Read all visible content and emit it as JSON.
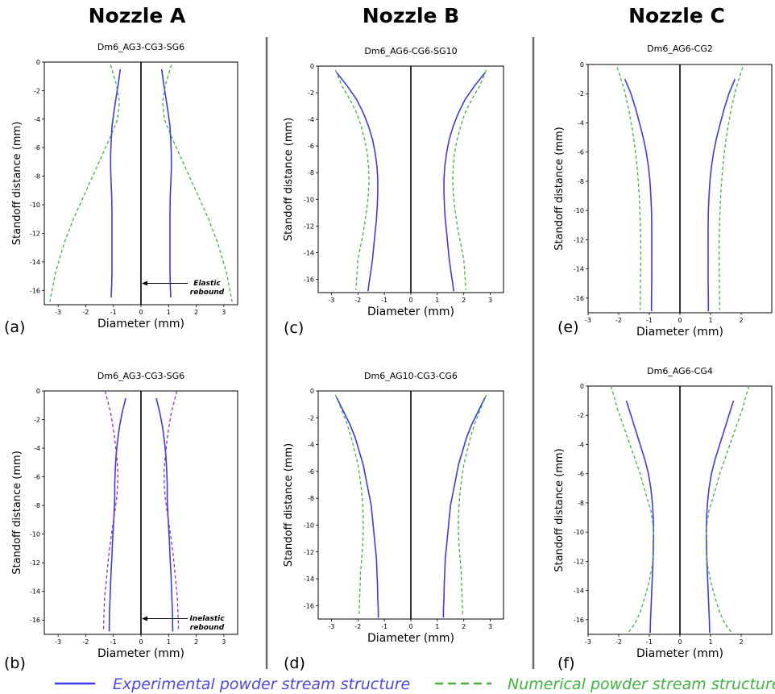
{
  "column_titles": [
    "Nozzle A",
    "Nozzle B",
    "Nozzle C"
  ],
  "legend": {
    "experimental": "Experimental powder stream structure",
    "numerical": "Numerical powder stream structure"
  },
  "colors": {
    "experimental": "#3a3af5",
    "numerical": "#3fb43f",
    "numerical_b": "#9b2fae",
    "axis": "#000000"
  },
  "chart_data": [
    {
      "type": "line",
      "panel": "(a)",
      "title": "Dm6_AG3-CG3-SG6",
      "xlabel": "Diameter (mm)",
      "ylabel": "Standoff distance (mm)",
      "xlim": [
        -3.5,
        3.5
      ],
      "ylim": [
        -17,
        0
      ],
      "xticks": [
        -3,
        -2,
        -1,
        0,
        1,
        2,
        3
      ],
      "yticks": [
        0,
        -2,
        -4,
        -6,
        -8,
        -10,
        -12,
        -14,
        -16
      ],
      "annotation": [
        "Elastic",
        "rebound"
      ],
      "annotation_xy": [
        0,
        -15.5
      ],
      "series": [
        {
          "kind": "experimental",
          "dash": false,
          "color": "#3a3af5",
          "x": [
            0.75,
            0.82,
            0.9,
            0.98,
            1.05,
            1.08,
            1.1,
            1.1,
            1.08,
            1.06,
            1.05,
            1.05,
            1.05,
            1.05,
            1.05,
            1.06,
            1.08
          ],
          "y": [
            -0.5,
            -1.5,
            -2.5,
            -3.5,
            -4.5,
            -5.5,
            -6.5,
            -7.5,
            -8.5,
            -9.5,
            -10.5,
            -11.5,
            -12.5,
            -13.5,
            -14.5,
            -15.5,
            -16.5
          ]
        },
        {
          "kind": "numerical",
          "dash": true,
          "color": "#3fb43f",
          "x": [
            1.1,
            0.9,
            0.78,
            0.85,
            1.05,
            1.4,
            1.75,
            2.1,
            2.45,
            2.8,
            3.1,
            3.3
          ],
          "y": [
            -0.2,
            -1.5,
            -2.8,
            -4.0,
            -5.0,
            -6.5,
            -8.0,
            -9.5,
            -11.0,
            -12.8,
            -14.8,
            -16.8
          ]
        }
      ]
    },
    {
      "type": "line",
      "panel": "(b)",
      "title": "Dm6_AG3-CG3-SG6",
      "xlabel": "Diameter (mm)",
      "ylabel": "Standoff distance (mm)",
      "xlim": [
        -3.5,
        3.5
      ],
      "ylim": [
        -17,
        0
      ],
      "xticks": [
        -3,
        -2,
        -1,
        0,
        1,
        2,
        3
      ],
      "yticks": [
        0,
        -2,
        -4,
        -6,
        -8,
        -10,
        -12,
        -14,
        -16
      ],
      "annotation": [
        "Inelastic",
        "rebound"
      ],
      "annotation_xy": [
        0,
        -15.9
      ],
      "series": [
        {
          "kind": "experimental",
          "dash": false,
          "color": "#3a3af5",
          "x": [
            0.55,
            0.68,
            0.78,
            0.85,
            0.9,
            0.93,
            0.95,
            0.95,
            0.97,
            1.0,
            1.03,
            1.05,
            1.08,
            1.1,
            1.12,
            1.14,
            1.15
          ],
          "y": [
            -0.5,
            -1.5,
            -2.5,
            -3.5,
            -4.5,
            -5.5,
            -6.5,
            -7.5,
            -8.5,
            -9.5,
            -10.5,
            -11.5,
            -12.5,
            -13.5,
            -14.5,
            -15.5,
            -16.8
          ]
        },
        {
          "kind": "numerical",
          "dash": true,
          "color": "#9b2fae",
          "x": [
            1.3,
            1.1,
            0.97,
            0.88,
            0.84,
            0.84,
            0.88,
            0.95,
            1.03,
            1.1,
            1.17,
            1.22,
            1.27,
            1.32,
            1.36
          ],
          "y": [
            0,
            -1.5,
            -3.0,
            -4.5,
            -5.5,
            -6.5,
            -7.5,
            -8.5,
            -9.5,
            -10.5,
            -11.5,
            -12.5,
            -13.5,
            -14.5,
            -16.8
          ]
        }
      ]
    },
    {
      "type": "line",
      "panel": "(c)",
      "title": "Dm6_AG6-CG6-SG10",
      "xlabel": "Diameter (mm)",
      "ylabel": "Standoff distance (mm)",
      "xlim": [
        -3.5,
        3.5
      ],
      "ylim": [
        -17,
        0
      ],
      "xticks": [
        -3,
        -2,
        -1,
        0,
        1,
        2,
        3
      ],
      "yticks": [
        0,
        -2,
        -4,
        -6,
        -8,
        -10,
        -12,
        -14,
        -16
      ],
      "series": [
        {
          "kind": "experimental",
          "dash": false,
          "color": "#3a3af5",
          "x": [
            2.8,
            2.4,
            2.05,
            1.8,
            1.6,
            1.45,
            1.35,
            1.28,
            1.25,
            1.25,
            1.27,
            1.3,
            1.35,
            1.4,
            1.45,
            1.52,
            1.58,
            1.62
          ],
          "y": [
            -0.5,
            -1.5,
            -2.5,
            -3.5,
            -4.5,
            -5.5,
            -6.5,
            -7.5,
            -8.5,
            -9.5,
            -10.5,
            -11.5,
            -12.5,
            -13.5,
            -14.5,
            -15.5,
            -16.3,
            -16.9
          ]
        },
        {
          "kind": "numerical",
          "dash": true,
          "color": "#3fb43f",
          "x": [
            2.85,
            2.6,
            2.3,
            2.05,
            1.88,
            1.75,
            1.65,
            1.6,
            1.58,
            1.6,
            1.65,
            1.72,
            1.8,
            1.9,
            2.0,
            2.08
          ],
          "y": [
            -0.3,
            -1.5,
            -2.5,
            -3.5,
            -4.5,
            -5.5,
            -6.5,
            -7.5,
            -8.5,
            -9.5,
            -10.5,
            -11.5,
            -12.5,
            -13.5,
            -14.5,
            -16.8
          ]
        }
      ]
    },
    {
      "type": "line",
      "panel": "(d)",
      "title": "Dm6_AG10-CG3-CG6",
      "xlabel": "Diameter (mm)",
      "ylabel": "Standoff distance (mm)",
      "xlim": [
        -3.5,
        3.5
      ],
      "ylim": [
        -17,
        0
      ],
      "xticks": [
        -3,
        -2,
        -1,
        0,
        1,
        2,
        3
      ],
      "yticks": [
        0,
        -2,
        -4,
        -6,
        -8,
        -10,
        -12,
        -14,
        -16
      ],
      "series": [
        {
          "kind": "experimental",
          "dash": false,
          "color": "#3a3af5",
          "x": [
            2.8,
            2.55,
            2.3,
            2.1,
            1.95,
            1.8,
            1.7,
            1.6,
            1.5,
            1.45,
            1.4,
            1.35,
            1.3,
            1.28,
            1.26,
            1.25,
            1.23,
            1.23
          ],
          "y": [
            -0.5,
            -1.5,
            -2.5,
            -3.5,
            -4.5,
            -5.5,
            -6.5,
            -7.5,
            -8.5,
            -9.5,
            -10.5,
            -11.5,
            -12.5,
            -13.5,
            -14.5,
            -15.5,
            -16.3,
            -16.9
          ]
        },
        {
          "kind": "numerical",
          "dash": true,
          "color": "#3fb43f",
          "x": [
            2.85,
            2.6,
            2.4,
            2.25,
            2.12,
            2.0,
            1.92,
            1.86,
            1.82,
            1.8,
            1.8,
            1.82,
            1.86,
            1.9,
            1.96
          ],
          "y": [
            -0.3,
            -1.5,
            -2.5,
            -3.5,
            -4.5,
            -5.5,
            -6.5,
            -7.5,
            -8.5,
            -9.5,
            -10.5,
            -11.5,
            -12.5,
            -13.5,
            -16.8
          ]
        }
      ]
    },
    {
      "type": "line",
      "panel": "(e)",
      "title": "Dm6_AG6-CG2",
      "xlabel": "Diameter (mm)",
      "ylabel": "Standoff distance (mm)",
      "xlim": [
        -3,
        3
      ],
      "ylim": [
        -17,
        0
      ],
      "xticks": [
        -3,
        -2,
        -1,
        0,
        1,
        2
      ],
      "yticks": [
        0,
        -2,
        -4,
        -6,
        -8,
        -10,
        -12,
        -14,
        -16
      ],
      "series": [
        {
          "kind": "experimental",
          "dash": false,
          "color": "#3a3af5",
          "x": [
            1.8,
            1.6,
            1.45,
            1.32,
            1.2,
            1.1,
            1.03,
            0.98,
            0.95,
            0.93,
            0.92,
            0.92,
            0.92,
            0.92,
            0.92,
            0.93,
            0.93
          ],
          "y": [
            -1.0,
            -2.0,
            -3.0,
            -4.0,
            -5.0,
            -6.0,
            -7.0,
            -8.0,
            -9.0,
            -10.0,
            -11.0,
            -12.0,
            -13.0,
            -14.0,
            -15.0,
            -16.0,
            -16.9
          ]
        },
        {
          "kind": "numerical",
          "dash": true,
          "color": "#3fb43f",
          "x": [
            2.05,
            1.85,
            1.68,
            1.55,
            1.45,
            1.38,
            1.33,
            1.3,
            1.28,
            1.28,
            1.3
          ],
          "y": [
            -0.2,
            -1.5,
            -3.0,
            -4.5,
            -6.0,
            -7.5,
            -9.0,
            -10.5,
            -12.0,
            -13.5,
            -16.8
          ]
        }
      ]
    },
    {
      "type": "line",
      "panel": "(f)",
      "title": "Dm6_AG6-CG4",
      "xlabel": "Diameter (mm)",
      "ylabel": "Standoff distance (mm)",
      "xlim": [
        -3,
        3
      ],
      "ylim": [
        -17,
        0
      ],
      "xticks": [
        -3,
        -2,
        -1,
        0,
        1,
        2
      ],
      "yticks": [
        0,
        -2,
        -4,
        -6,
        -8,
        -10,
        -12,
        -14,
        -16
      ],
      "series": [
        {
          "kind": "experimental",
          "dash": false,
          "color": "#3a3af5",
          "x": [
            1.75,
            1.6,
            1.45,
            1.3,
            1.15,
            1.03,
            0.95,
            0.9,
            0.87,
            0.86,
            0.87,
            0.88,
            0.9,
            0.92,
            0.94,
            0.96,
            0.97
          ],
          "y": [
            -1.0,
            -2.0,
            -3.0,
            -4.0,
            -5.0,
            -6.0,
            -7.0,
            -8.0,
            -9.0,
            -10.0,
            -11.0,
            -12.0,
            -13.0,
            -14.0,
            -15.0,
            -16.0,
            -16.9
          ]
        },
        {
          "kind": "numerical",
          "dash": true,
          "color": "#3fb43f",
          "x": [
            2.25,
            2.05,
            1.8,
            1.55,
            1.3,
            1.1,
            0.95,
            0.88,
            0.85,
            0.86,
            0.92,
            1.02,
            1.15,
            1.3,
            1.48,
            1.7
          ],
          "y": [
            0,
            -1.5,
            -3.0,
            -4.5,
            -6.0,
            -7.5,
            -8.5,
            -9.5,
            -10.5,
            -11.5,
            -12.5,
            -13.5,
            -14.5,
            -15.5,
            -16.3,
            -16.9
          ]
        }
      ]
    }
  ]
}
